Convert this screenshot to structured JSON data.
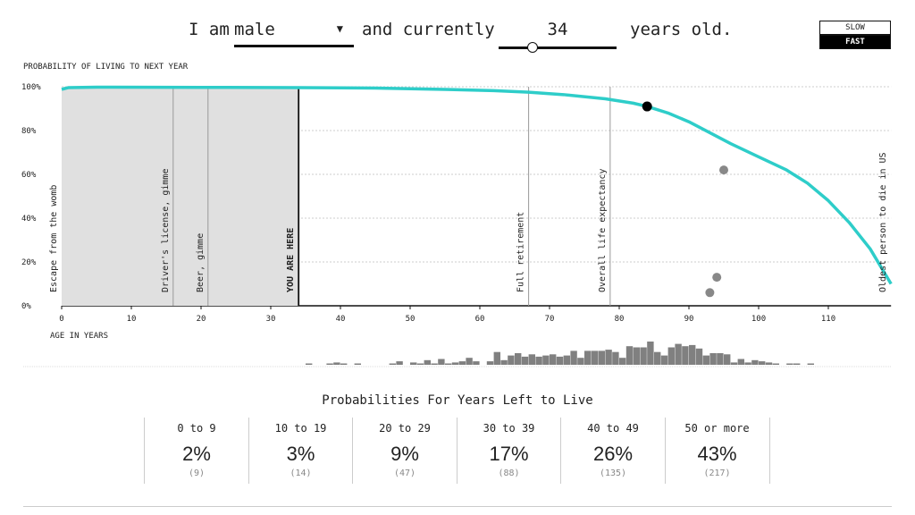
{
  "header": {
    "prefix": "I am",
    "gender": "male",
    "middle": "and currently",
    "age": "34",
    "suffix": "years old.",
    "age_fraction": 0.28
  },
  "speed": {
    "slow": "SLOW",
    "fast": "FAST",
    "selected": "FAST"
  },
  "chart_data": {
    "type": "line",
    "ylabel": "PROBABILITY OF LIVING TO NEXT YEAR",
    "xlabel": "AGE IN YEARS",
    "xlim": [
      0,
      119
    ],
    "ylim": [
      0,
      100
    ],
    "xticks": [
      0,
      10,
      20,
      30,
      40,
      50,
      60,
      70,
      80,
      90,
      100,
      110
    ],
    "yticks": [
      {
        "v": 0,
        "label": "0%"
      },
      {
        "v": 20,
        "label": "20%"
      },
      {
        "v": 40,
        "label": "40%"
      },
      {
        "v": 60,
        "label": "60%"
      },
      {
        "v": 80,
        "label": "80%"
      },
      {
        "v": 100,
        "label": "100%"
      }
    ],
    "curve": [
      [
        0,
        98.8
      ],
      [
        1,
        99.6
      ],
      [
        5,
        99.8
      ],
      [
        20,
        99.7
      ],
      [
        34,
        99.6
      ],
      [
        45,
        99.4
      ],
      [
        55,
        98.8
      ],
      [
        62,
        98.2
      ],
      [
        67,
        97.5
      ],
      [
        72,
        96.4
      ],
      [
        78,
        94.5
      ],
      [
        82,
        92.5
      ],
      [
        84,
        91
      ],
      [
        87,
        88
      ],
      [
        90,
        84
      ],
      [
        93,
        79
      ],
      [
        96,
        74
      ],
      [
        100,
        68
      ],
      [
        104,
        62
      ],
      [
        107,
        56
      ],
      [
        110,
        48
      ],
      [
        113,
        38
      ],
      [
        116,
        26
      ],
      [
        119,
        10
      ]
    ],
    "current_point": {
      "age": 84,
      "p": 91
    },
    "other_points": [
      {
        "age": 95,
        "p": 62
      },
      {
        "age": 94,
        "p": 13
      },
      {
        "age": 93,
        "p": 6
      }
    ],
    "shaded_until": 34,
    "markers": [
      {
        "age": 0,
        "label": "Escape from the womb",
        "line": false
      },
      {
        "age": 16,
        "label": "Driver's license, gimme",
        "line": true
      },
      {
        "age": 21,
        "label": "Beer, gimme",
        "line": true
      },
      {
        "age": 34,
        "label": "YOU ARE HERE",
        "line": true,
        "current": true
      },
      {
        "age": 67,
        "label": "Full retirement",
        "line": true
      },
      {
        "age": 78.7,
        "label": "Overall life expectancy",
        "line": true
      },
      {
        "age": 119,
        "label": "Oldest person to die in US",
        "line": false
      }
    ],
    "histogram_start_age": 35,
    "histogram": [
      1,
      0,
      0,
      1,
      2,
      1,
      0,
      1,
      0,
      0,
      0,
      0,
      0.5,
      3,
      0,
      2,
      0.5,
      4,
      1,
      5,
      1,
      2,
      3,
      6,
      3,
      0,
      3,
      11,
      4,
      8,
      10,
      7,
      9,
      7,
      8,
      9,
      7,
      8,
      12,
      6,
      12,
      12,
      12,
      13,
      11,
      6,
      16,
      15,
      15,
      20,
      11,
      8,
      15,
      18,
      16,
      17,
      14,
      8,
      10,
      10,
      9,
      2,
      5,
      2,
      4,
      3,
      2,
      1,
      0,
      1,
      1,
      0,
      1
    ]
  },
  "stats": {
    "title": "Probabilities For Years Left to Live",
    "cells": [
      {
        "range": "0 to 9",
        "pct": "2%",
        "count": "(9)"
      },
      {
        "range": "10 to 19",
        "pct": "3%",
        "count": "(14)"
      },
      {
        "range": "20 to 29",
        "pct": "9%",
        "count": "(47)"
      },
      {
        "range": "30 to 39",
        "pct": "17%",
        "count": "(88)"
      },
      {
        "range": "40 to 49",
        "pct": "26%",
        "count": "(135)"
      },
      {
        "range": "50 or more",
        "pct": "43%",
        "count": "(217)"
      }
    ]
  },
  "colors": {
    "curve": "#2ecdc9",
    "shade": "#e0e0e0",
    "hist": "#808080",
    "current": "#000000",
    "other": "#888888"
  }
}
